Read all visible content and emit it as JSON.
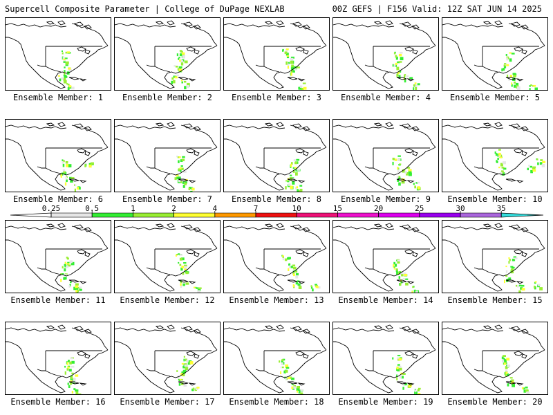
{
  "header": {
    "title_left": "Supercell Composite Parameter | College of DuPage NEXLAB",
    "title_right": "00Z GEFS | F156 Valid: 12Z SAT JUN 14 2025"
  },
  "colorbar": {
    "ticks": [
      "0.25",
      "0.5",
      "1",
      "2",
      "4",
      "7",
      "10",
      "15",
      "20",
      "25",
      "30",
      "35"
    ],
    "colors": [
      "#e6e6e6",
      "#33ee33",
      "#99ee33",
      "#ffff33",
      "#ff9900",
      "#ee1111",
      "#ee1177",
      "#ee11cc",
      "#dd00ee",
      "#9900ee",
      "#aa66dd",
      "#33dddd"
    ]
  },
  "panels": [
    {
      "label": "Ensemble Member: 1"
    },
    {
      "label": "Ensemble Member: 2"
    },
    {
      "label": "Ensemble Member: 3"
    },
    {
      "label": "Ensemble Member: 4"
    },
    {
      "label": "Ensemble Member: 5"
    },
    {
      "label": "Ensemble Member: 6"
    },
    {
      "label": "Ensemble Member: 7"
    },
    {
      "label": "Ensemble Member: 8"
    },
    {
      "label": "Ensemble Member: 9"
    },
    {
      "label": "Ensemble Member: 10"
    },
    {
      "label": "Ensemble Member: 11"
    },
    {
      "label": "Ensemble Member: 12"
    },
    {
      "label": "Ensemble Member: 13"
    },
    {
      "label": "Ensemble Member: 14"
    },
    {
      "label": "Ensemble Member: 15"
    },
    {
      "label": "Ensemble Member: 16"
    },
    {
      "label": "Ensemble Member: 17"
    },
    {
      "label": "Ensemble Member: 18"
    },
    {
      "label": "Ensemble Member: 19"
    },
    {
      "label": "Ensemble Member: 20"
    }
  ]
}
